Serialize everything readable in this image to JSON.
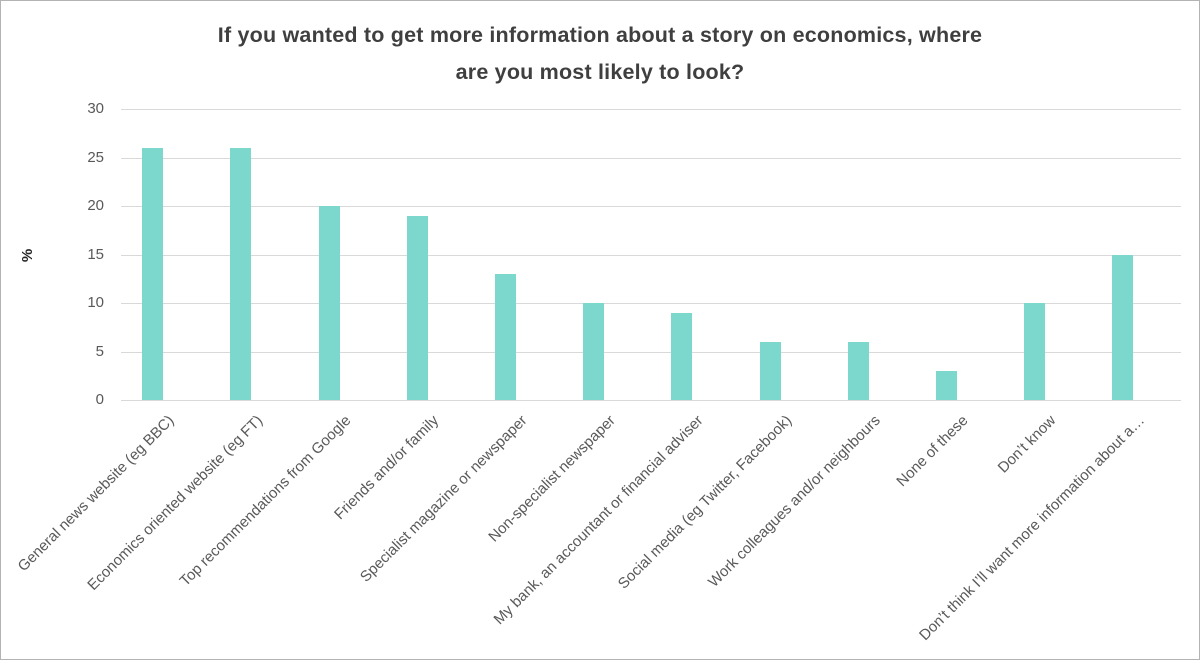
{
  "window": {
    "background": "#ffffff",
    "border_color": "#b3b3b3"
  },
  "chart_data": {
    "type": "bar",
    "title": "If you wanted to get more information about a story on economics, where are you most likely to look?",
    "title_lines": [
      "If you wanted to get more information about a story on economics, where",
      "are you most likely to look?"
    ],
    "ylabel": "%",
    "xlabel": "",
    "categories": [
      "General news website (eg BBC)",
      "Economics oriented website (eg FT)",
      "Top recommendations from Google",
      "Friends and/or family",
      "Specialist magazine or newspaper",
      "Non-specialist newspaper",
      "My bank, an accountant or financial adviser",
      "Social media (eg Twitter, Facebook)",
      "Work colleagues and/or neighbours",
      "None of these",
      "Don’t know",
      "Don’t think I’ll want more information about a…"
    ],
    "values": [
      26,
      26,
      20,
      19,
      13,
      10,
      9,
      6,
      6,
      3,
      10,
      15
    ],
    "ylim": [
      0,
      30
    ],
    "yticks": [
      0,
      5,
      10,
      15,
      20,
      25,
      30
    ],
    "grid": true,
    "legend_position": "none",
    "colors": {
      "bar": "#7CD7CC",
      "gridline": "#D9D9D9",
      "axis_text": "#595959",
      "title_text": "#3F3F3F",
      "ylabel_text": "#262626"
    }
  }
}
